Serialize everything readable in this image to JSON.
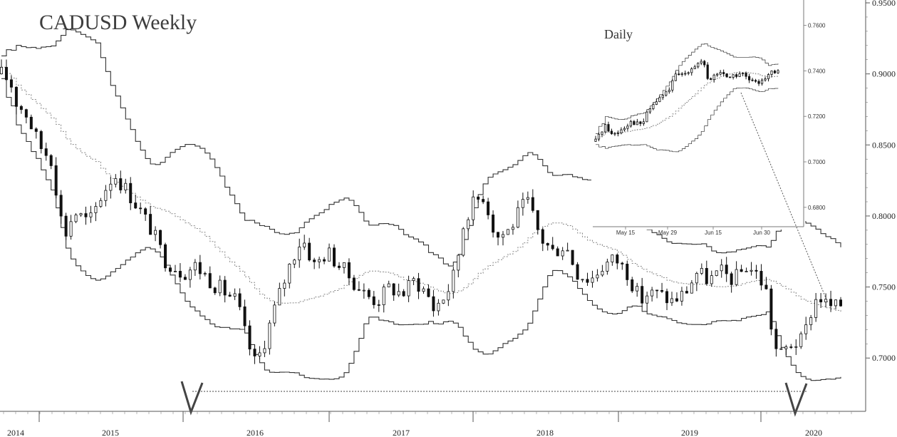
{
  "chart_data": [
    {
      "type": "candlestick",
      "title": "CADUSD Weekly",
      "ylim": [
        0.665,
        0.95
      ],
      "y_ticks": [
        "0.9500",
        "0.9000",
        "0.8500",
        "0.8000",
        "0.7500",
        "0.7000"
      ],
      "x_tick_labels": [
        "2014",
        "2015",
        "2016",
        "2017",
        "2018",
        "2019",
        "2020"
      ],
      "price_path": [
        [
          2014.0,
          0.9
        ],
        [
          2014.07,
          0.895
        ],
        [
          2014.12,
          0.88
        ],
        [
          2014.2,
          0.872
        ],
        [
          2014.3,
          0.85
        ],
        [
          2014.4,
          0.84
        ],
        [
          2014.5,
          0.785
        ],
        [
          2014.58,
          0.803
        ],
        [
          2014.7,
          0.795
        ],
        [
          2014.8,
          0.815
        ],
        [
          2014.9,
          0.83
        ],
        [
          2015.05,
          0.812
        ],
        [
          2015.2,
          0.79
        ],
        [
          2015.3,
          0.77
        ],
        [
          2015.45,
          0.76
        ],
        [
          2015.55,
          0.765
        ],
        [
          2015.7,
          0.752
        ],
        [
          2015.88,
          0.74
        ],
        [
          2015.95,
          0.715
        ],
        [
          2016.03,
          0.695
        ],
        [
          2016.1,
          0.712
        ],
        [
          2016.2,
          0.74
        ],
        [
          2016.32,
          0.77
        ],
        [
          2016.4,
          0.785
        ],
        [
          2016.5,
          0.765
        ],
        [
          2016.6,
          0.775
        ],
        [
          2016.75,
          0.76
        ],
        [
          2016.9,
          0.745
        ],
        [
          2017.0,
          0.74
        ],
        [
          2017.1,
          0.75
        ],
        [
          2017.2,
          0.745
        ],
        [
          2017.3,
          0.755
        ],
        [
          2017.4,
          0.745
        ],
        [
          2017.45,
          0.735
        ],
        [
          2017.55,
          0.745
        ],
        [
          2017.62,
          0.76
        ],
        [
          2017.7,
          0.8
        ],
        [
          2017.78,
          0.81
        ],
        [
          2017.85,
          0.815
        ],
        [
          2017.95,
          0.785
        ],
        [
          2018.05,
          0.79
        ],
        [
          2018.15,
          0.805
        ],
        [
          2018.2,
          0.81
        ],
        [
          2018.3,
          0.785
        ],
        [
          2018.4,
          0.775
        ],
        [
          2018.5,
          0.78
        ],
        [
          2018.6,
          0.76
        ],
        [
          2018.7,
          0.755
        ],
        [
          2018.8,
          0.765
        ],
        [
          2018.9,
          0.77
        ],
        [
          2019.0,
          0.76
        ],
        [
          2019.1,
          0.74
        ],
        [
          2019.15,
          0.745
        ],
        [
          2019.25,
          0.745
        ],
        [
          2019.35,
          0.74
        ],
        [
          2019.45,
          0.745
        ],
        [
          2019.55,
          0.76
        ],
        [
          2019.65,
          0.755
        ],
        [
          2019.75,
          0.76
        ],
        [
          2019.85,
          0.755
        ],
        [
          2019.95,
          0.765
        ],
        [
          2020.02,
          0.76
        ],
        [
          2020.1,
          0.75
        ],
        [
          2020.15,
          0.72
        ],
        [
          2020.2,
          0.7
        ],
        [
          2020.3,
          0.71
        ],
        [
          2020.4,
          0.712
        ],
        [
          2020.45,
          0.73
        ],
        [
          2020.52,
          0.745
        ],
        [
          2020.58,
          0.738
        ],
        [
          2020.65,
          0.735
        ],
        [
          2020.7,
          0.738
        ]
      ],
      "reference_level": 0.686,
      "annotations": [
        "V",
        "V"
      ]
    },
    {
      "type": "candlestick",
      "title": "Daily",
      "ylim": [
        0.674,
        0.768
      ],
      "y_ticks": [
        "0.7600",
        "0.7400",
        "0.7200",
        "0.7000",
        "0.6800"
      ],
      "x_tick_labels": [
        "May 15",
        "May 29",
        "Jun 15",
        "Jun 30"
      ],
      "price_path": [
        [
          0,
          0.709
        ],
        [
          3,
          0.714
        ],
        [
          6,
          0.716
        ],
        [
          9,
          0.712
        ],
        [
          12,
          0.713
        ],
        [
          15,
          0.715
        ],
        [
          18,
          0.717
        ],
        [
          21,
          0.718
        ],
        [
          24,
          0.716
        ],
        [
          27,
          0.718
        ],
        [
          30,
          0.723
        ],
        [
          33,
          0.726
        ],
        [
          36,
          0.728
        ],
        [
          39,
          0.73
        ],
        [
          42,
          0.733
        ],
        [
          45,
          0.738
        ],
        [
          48,
          0.738
        ],
        [
          51,
          0.74
        ],
        [
          54,
          0.742
        ],
        [
          57,
          0.743
        ],
        [
          60,
          0.744
        ],
        [
          63,
          0.735
        ],
        [
          66,
          0.738
        ],
        [
          69,
          0.739
        ],
        [
          72,
          0.739
        ],
        [
          75,
          0.737
        ],
        [
          78,
          0.738
        ],
        [
          81,
          0.739
        ],
        [
          84,
          0.737
        ],
        [
          87,
          0.735
        ],
        [
          90,
          0.734
        ],
        [
          93,
          0.737
        ],
        [
          96,
          0.738
        ],
        [
          99,
          0.739
        ],
        [
          102,
          0.739
        ]
      ]
    }
  ]
}
